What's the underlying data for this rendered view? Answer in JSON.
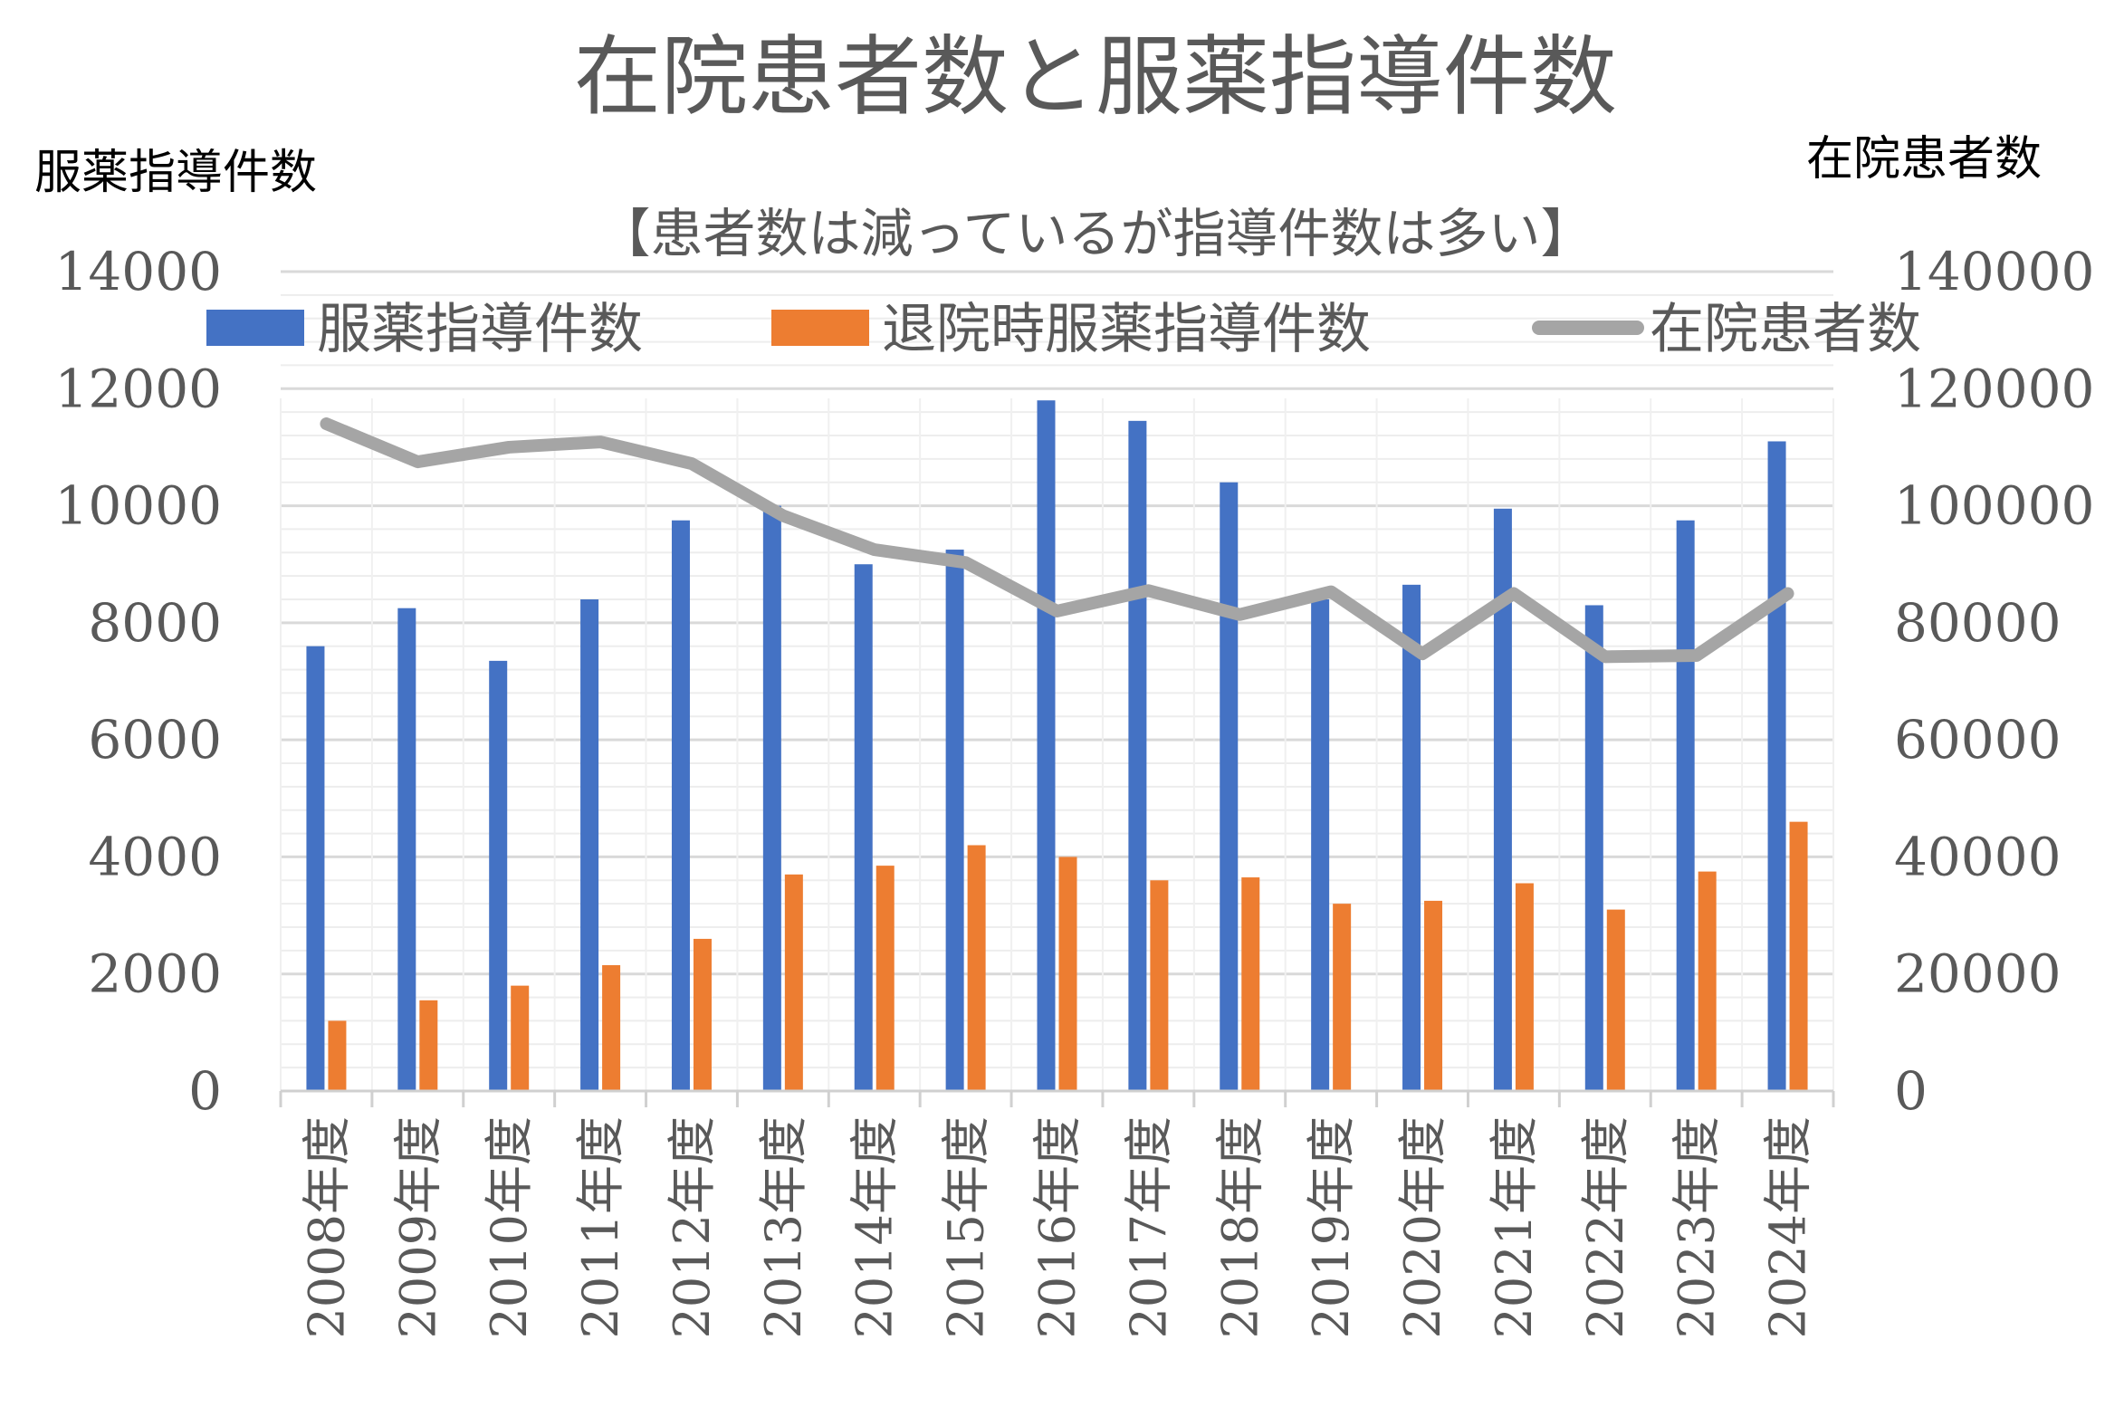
{
  "chart_data": {
    "type": "bar",
    "title": "在院患者数と服薬指導件数",
    "subtitle": "【患者数は減っているが指導件数は多い】",
    "ylabel_left": "服薬指導件数",
    "ylabel_right": "在院患者数",
    "categories": [
      "2008年度",
      "2009年度",
      "2010年度",
      "2011年度",
      "2012年度",
      "2013年度",
      "2014年度",
      "2015年度",
      "2016年度",
      "2017年度",
      "2018年度",
      "2019年度",
      "2020年度",
      "2021年度",
      "2022年度",
      "2023年度",
      "2024年度"
    ],
    "ylim_left": [
      0,
      14000
    ],
    "ylim_right": [
      0,
      140000
    ],
    "yticks_left": [
      "0",
      "2000",
      "4000",
      "6000",
      "8000",
      "10000",
      "12000",
      "14000"
    ],
    "yticks_right": [
      "0",
      "20000",
      "40000",
      "60000",
      "80000",
      "100000",
      "120000",
      "140000"
    ],
    "legend_position": "top",
    "grid": true,
    "series": [
      {
        "name": "服薬指導件数",
        "type": "bar",
        "axis": "left",
        "color": "#4472C4",
        "values": [
          7600,
          8250,
          7350,
          8400,
          9750,
          10000,
          9000,
          9250,
          11800,
          11450,
          10400,
          8400,
          8650,
          9950,
          8300,
          9750,
          11100
        ]
      },
      {
        "name": "退院時服薬指導件数",
        "type": "bar",
        "axis": "left",
        "color": "#ED7D31",
        "values": [
          1200,
          1550,
          1800,
          2150,
          2600,
          3700,
          3850,
          4200,
          4000,
          3600,
          3650,
          3200,
          3250,
          3550,
          3100,
          3750,
          4600
        ]
      },
      {
        "name": "在院患者数",
        "type": "line",
        "axis": "right",
        "color": "#A5A5A5",
        "values": [
          114000,
          107500,
          110000,
          110900,
          107200,
          98300,
          92500,
          90300,
          82000,
          85500,
          81400,
          85300,
          74700,
          85000,
          74200,
          74400,
          85000
        ]
      }
    ]
  }
}
